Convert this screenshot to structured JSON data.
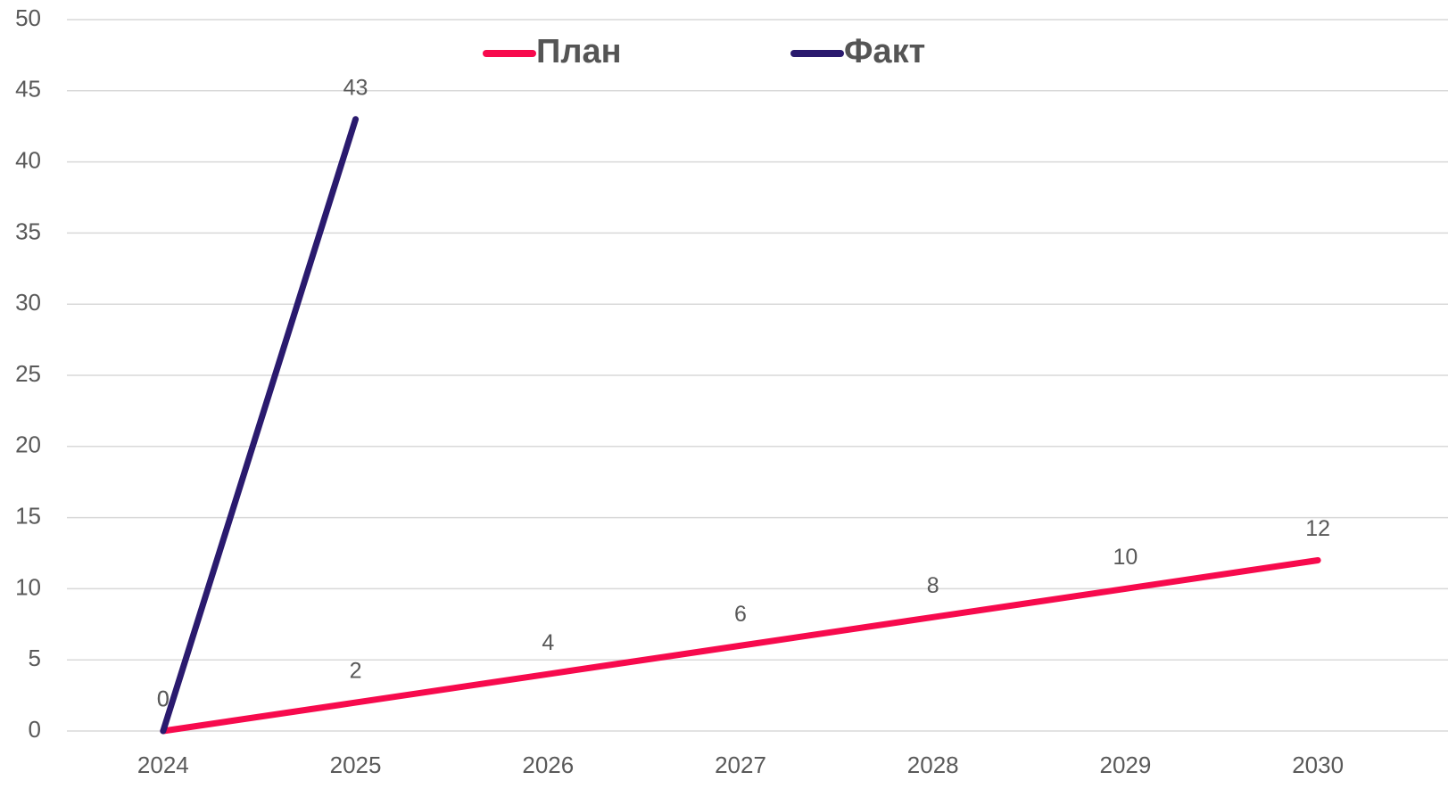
{
  "chart_data": {
    "type": "line",
    "categories": [
      "2024",
      "2025",
      "2026",
      "2027",
      "2028",
      "2029",
      "2030"
    ],
    "series": [
      {
        "name": "План",
        "color": "#f70a4d",
        "values": [
          0,
          2,
          4,
          6,
          8,
          10,
          12
        ]
      },
      {
        "name": "Факт",
        "color": "#2a1a6e",
        "values": [
          0,
          43,
          null,
          null,
          null,
          null,
          null
        ]
      }
    ],
    "ylim": [
      0,
      50
    ],
    "yticks": [
      0,
      5,
      10,
      15,
      20,
      25,
      30,
      35,
      40,
      45,
      50
    ],
    "grid": true,
    "legend": "top"
  }
}
